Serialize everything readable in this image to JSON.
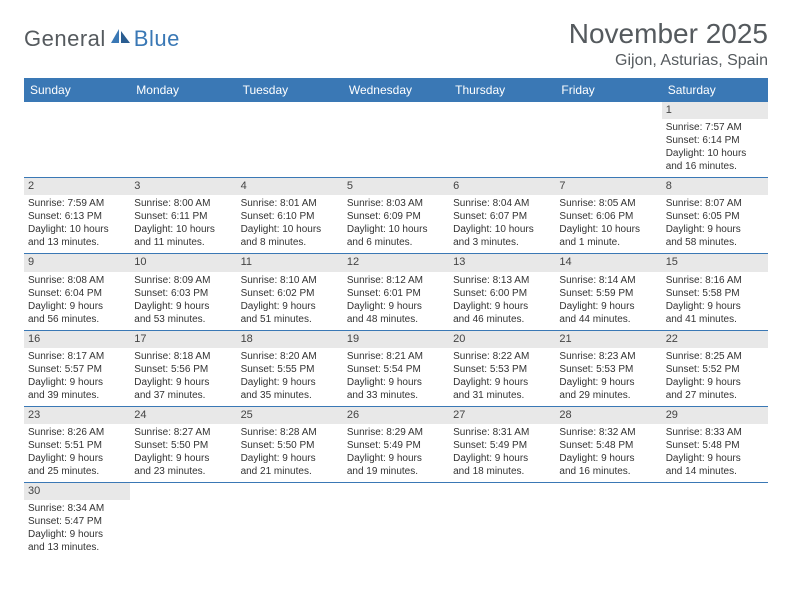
{
  "logo": {
    "general": "General",
    "blue": "Blue"
  },
  "title": "November 2025",
  "location": "Gijon, Asturias, Spain",
  "colors": {
    "header_bg": "#3a78b5",
    "header_text": "#ffffff",
    "daynum_bg": "#e8e8e8",
    "row_divider": "#3a78b5",
    "logo_gray": "#555a5e",
    "logo_blue": "#3a78b5"
  },
  "dow": [
    "Sunday",
    "Monday",
    "Tuesday",
    "Wednesday",
    "Thursday",
    "Friday",
    "Saturday"
  ],
  "weeks": [
    [
      {
        "n": "",
        "lines": [
          "",
          "",
          "",
          ""
        ]
      },
      {
        "n": "",
        "lines": [
          "",
          "",
          "",
          ""
        ]
      },
      {
        "n": "",
        "lines": [
          "",
          "",
          "",
          ""
        ]
      },
      {
        "n": "",
        "lines": [
          "",
          "",
          "",
          ""
        ]
      },
      {
        "n": "",
        "lines": [
          "",
          "",
          "",
          ""
        ]
      },
      {
        "n": "",
        "lines": [
          "",
          "",
          "",
          ""
        ]
      },
      {
        "n": "1",
        "lines": [
          "Sunrise: 7:57 AM",
          "Sunset: 6:14 PM",
          "Daylight: 10 hours",
          "and 16 minutes."
        ]
      }
    ],
    [
      {
        "n": "2",
        "lines": [
          "Sunrise: 7:59 AM",
          "Sunset: 6:13 PM",
          "Daylight: 10 hours",
          "and 13 minutes."
        ]
      },
      {
        "n": "3",
        "lines": [
          "Sunrise: 8:00 AM",
          "Sunset: 6:11 PM",
          "Daylight: 10 hours",
          "and 11 minutes."
        ]
      },
      {
        "n": "4",
        "lines": [
          "Sunrise: 8:01 AM",
          "Sunset: 6:10 PM",
          "Daylight: 10 hours",
          "and 8 minutes."
        ]
      },
      {
        "n": "5",
        "lines": [
          "Sunrise: 8:03 AM",
          "Sunset: 6:09 PM",
          "Daylight: 10 hours",
          "and 6 minutes."
        ]
      },
      {
        "n": "6",
        "lines": [
          "Sunrise: 8:04 AM",
          "Sunset: 6:07 PM",
          "Daylight: 10 hours",
          "and 3 minutes."
        ]
      },
      {
        "n": "7",
        "lines": [
          "Sunrise: 8:05 AM",
          "Sunset: 6:06 PM",
          "Daylight: 10 hours",
          "and 1 minute."
        ]
      },
      {
        "n": "8",
        "lines": [
          "Sunrise: 8:07 AM",
          "Sunset: 6:05 PM",
          "Daylight: 9 hours",
          "and 58 minutes."
        ]
      }
    ],
    [
      {
        "n": "9",
        "lines": [
          "Sunrise: 8:08 AM",
          "Sunset: 6:04 PM",
          "Daylight: 9 hours",
          "and 56 minutes."
        ]
      },
      {
        "n": "10",
        "lines": [
          "Sunrise: 8:09 AM",
          "Sunset: 6:03 PM",
          "Daylight: 9 hours",
          "and 53 minutes."
        ]
      },
      {
        "n": "11",
        "lines": [
          "Sunrise: 8:10 AM",
          "Sunset: 6:02 PM",
          "Daylight: 9 hours",
          "and 51 minutes."
        ]
      },
      {
        "n": "12",
        "lines": [
          "Sunrise: 8:12 AM",
          "Sunset: 6:01 PM",
          "Daylight: 9 hours",
          "and 48 minutes."
        ]
      },
      {
        "n": "13",
        "lines": [
          "Sunrise: 8:13 AM",
          "Sunset: 6:00 PM",
          "Daylight: 9 hours",
          "and 46 minutes."
        ]
      },
      {
        "n": "14",
        "lines": [
          "Sunrise: 8:14 AM",
          "Sunset: 5:59 PM",
          "Daylight: 9 hours",
          "and 44 minutes."
        ]
      },
      {
        "n": "15",
        "lines": [
          "Sunrise: 8:16 AM",
          "Sunset: 5:58 PM",
          "Daylight: 9 hours",
          "and 41 minutes."
        ]
      }
    ],
    [
      {
        "n": "16",
        "lines": [
          "Sunrise: 8:17 AM",
          "Sunset: 5:57 PM",
          "Daylight: 9 hours",
          "and 39 minutes."
        ]
      },
      {
        "n": "17",
        "lines": [
          "Sunrise: 8:18 AM",
          "Sunset: 5:56 PM",
          "Daylight: 9 hours",
          "and 37 minutes."
        ]
      },
      {
        "n": "18",
        "lines": [
          "Sunrise: 8:20 AM",
          "Sunset: 5:55 PM",
          "Daylight: 9 hours",
          "and 35 minutes."
        ]
      },
      {
        "n": "19",
        "lines": [
          "Sunrise: 8:21 AM",
          "Sunset: 5:54 PM",
          "Daylight: 9 hours",
          "and 33 minutes."
        ]
      },
      {
        "n": "20",
        "lines": [
          "Sunrise: 8:22 AM",
          "Sunset: 5:53 PM",
          "Daylight: 9 hours",
          "and 31 minutes."
        ]
      },
      {
        "n": "21",
        "lines": [
          "Sunrise: 8:23 AM",
          "Sunset: 5:53 PM",
          "Daylight: 9 hours",
          "and 29 minutes."
        ]
      },
      {
        "n": "22",
        "lines": [
          "Sunrise: 8:25 AM",
          "Sunset: 5:52 PM",
          "Daylight: 9 hours",
          "and 27 minutes."
        ]
      }
    ],
    [
      {
        "n": "23",
        "lines": [
          "Sunrise: 8:26 AM",
          "Sunset: 5:51 PM",
          "Daylight: 9 hours",
          "and 25 minutes."
        ]
      },
      {
        "n": "24",
        "lines": [
          "Sunrise: 8:27 AM",
          "Sunset: 5:50 PM",
          "Daylight: 9 hours",
          "and 23 minutes."
        ]
      },
      {
        "n": "25",
        "lines": [
          "Sunrise: 8:28 AM",
          "Sunset: 5:50 PM",
          "Daylight: 9 hours",
          "and 21 minutes."
        ]
      },
      {
        "n": "26",
        "lines": [
          "Sunrise: 8:29 AM",
          "Sunset: 5:49 PM",
          "Daylight: 9 hours",
          "and 19 minutes."
        ]
      },
      {
        "n": "27",
        "lines": [
          "Sunrise: 8:31 AM",
          "Sunset: 5:49 PM",
          "Daylight: 9 hours",
          "and 18 minutes."
        ]
      },
      {
        "n": "28",
        "lines": [
          "Sunrise: 8:32 AM",
          "Sunset: 5:48 PM",
          "Daylight: 9 hours",
          "and 16 minutes."
        ]
      },
      {
        "n": "29",
        "lines": [
          "Sunrise: 8:33 AM",
          "Sunset: 5:48 PM",
          "Daylight: 9 hours",
          "and 14 minutes."
        ]
      }
    ],
    [
      {
        "n": "30",
        "lines": [
          "Sunrise: 8:34 AM",
          "Sunset: 5:47 PM",
          "Daylight: 9 hours",
          "and 13 minutes."
        ]
      },
      {
        "n": "",
        "lines": [
          "",
          "",
          "",
          ""
        ]
      },
      {
        "n": "",
        "lines": [
          "",
          "",
          "",
          ""
        ]
      },
      {
        "n": "",
        "lines": [
          "",
          "",
          "",
          ""
        ]
      },
      {
        "n": "",
        "lines": [
          "",
          "",
          "",
          ""
        ]
      },
      {
        "n": "",
        "lines": [
          "",
          "",
          "",
          ""
        ]
      },
      {
        "n": "",
        "lines": [
          "",
          "",
          "",
          ""
        ]
      }
    ]
  ]
}
